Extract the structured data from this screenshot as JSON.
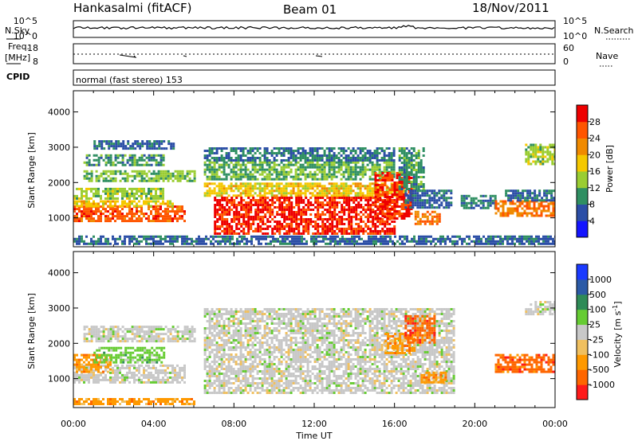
{
  "header": {
    "station": "Hankasalmi (fitACF)",
    "beam": "Beam 01",
    "date": "18/Nov/2011"
  },
  "noise_panel": {
    "left_label": "N.Sky",
    "right_label": "N.Search",
    "ticks": [
      {
        "base": "10",
        "exp": "^5"
      },
      {
        "base": "10",
        "exp": "^0"
      }
    ]
  },
  "freq_panel": {
    "left_label_1": "Freq.",
    "left_label_2": "[MHz]",
    "left_ticks": [
      "18",
      "8"
    ],
    "right_label": "Nave",
    "right_ticks": [
      "60",
      "0"
    ]
  },
  "cpid_panel": {
    "label": "CPID",
    "text": "normal (fast stereo) 153"
  },
  "chart_data": [
    {
      "type": "heatmap",
      "quantity": "Power",
      "colorbar_label": "Power [dB]",
      "colorbar_ticks": [
        "4",
        "8",
        "12",
        "16",
        "20",
        "24",
        "28"
      ],
      "colorbar_range": [
        0,
        32
      ],
      "colorbar_colors": [
        "#1414ff",
        "#2b4ea6",
        "#2f8f62",
        "#9acd32",
        "#f5c800",
        "#f08a00",
        "#ff5500",
        "#ee0000"
      ],
      "ylabel": "Slant Range [km]",
      "yticks": [
        "1000",
        "2000",
        "3000",
        "4000"
      ],
      "ylim": [
        180,
        4600
      ],
      "xlim": [
        0,
        24
      ],
      "regions": [
        {
          "t0": 0.0,
          "t1": 5.5,
          "r0": 900,
          "r1": 1350,
          "value": 26
        },
        {
          "t0": 0.0,
          "t1": 5.0,
          "r0": 1350,
          "r1": 1500,
          "value": 18
        },
        {
          "t0": 0.0,
          "t1": 4.5,
          "r0": 1550,
          "r1": 1850,
          "value": 14
        },
        {
          "t0": 0.5,
          "t1": 6.0,
          "r0": 2050,
          "r1": 2350,
          "value": 13
        },
        {
          "t0": 0.5,
          "t1": 4.5,
          "r0": 2500,
          "r1": 2800,
          "value": 10
        },
        {
          "t0": 1.0,
          "t1": 5.0,
          "r0": 2950,
          "r1": 3200,
          "value": 7
        },
        {
          "t0": 6.5,
          "t1": 16.5,
          "r0": 1600,
          "r1": 2000,
          "value": 18
        },
        {
          "t0": 6.5,
          "t1": 16.0,
          "r0": 2100,
          "r1": 2600,
          "value": 12
        },
        {
          "t0": 6.5,
          "t1": 16.0,
          "r0": 2650,
          "r1": 3000,
          "value": 8
        },
        {
          "t0": 7.0,
          "t1": 16.0,
          "r0": 550,
          "r1": 1600,
          "value": 29
        },
        {
          "t0": 15.0,
          "t1": 16.8,
          "r0": 1000,
          "r1": 2300,
          "value": 28
        },
        {
          "t0": 16.2,
          "t1": 17.5,
          "r0": 1800,
          "r1": 3000,
          "value": 10
        },
        {
          "t0": 17.0,
          "t1": 18.3,
          "r0": 850,
          "r1": 1200,
          "value": 24
        },
        {
          "t0": 16.5,
          "t1": 18.8,
          "r0": 1300,
          "r1": 1800,
          "value": 7
        },
        {
          "t0": 19.3,
          "t1": 21.0,
          "r0": 1300,
          "r1": 1650,
          "value": 9
        },
        {
          "t0": 21.0,
          "t1": 24.0,
          "r0": 1050,
          "r1": 1500,
          "value": 24
        },
        {
          "t0": 21.5,
          "t1": 24.0,
          "r0": 1500,
          "r1": 1800,
          "value": 8
        },
        {
          "t0": 22.5,
          "t1": 24.0,
          "r0": 2500,
          "r1": 3100,
          "value": 14
        },
        {
          "t0": 0.0,
          "t1": 24.0,
          "r0": 250,
          "r1": 500,
          "value": 7
        }
      ]
    },
    {
      "type": "heatmap",
      "quantity": "Velocity",
      "colorbar_label": "Velocity [m s^-1]",
      "colorbar_ticks": [
        "-1000",
        "-500",
        "-100",
        "-25",
        "25",
        "100",
        "500",
        "1000"
      ],
      "colorbar_colors": [
        "#ff1a1a",
        "#ff6600",
        "#ff9900",
        "#f0c060",
        "#c8c8c8",
        "#66cc33",
        "#2e8b57",
        "#2b5aa6",
        "#1a3aff"
      ],
      "ylabel": "Slant Range [km]",
      "yticks": [
        "1000",
        "2000",
        "3000",
        "4000"
      ],
      "ylim": [
        180,
        4600
      ],
      "xlim": [
        0,
        24
      ],
      "regions": [
        {
          "t0": 0.0,
          "t1": 5.5,
          "r0": 900,
          "r1": 1400,
          "value": "-25..25"
        },
        {
          "t0": 0.0,
          "t1": 1.8,
          "r0": 1200,
          "r1": 1700,
          "value": "-100"
        },
        {
          "t0": 1.0,
          "t1": 4.5,
          "r0": 1450,
          "r1": 1900,
          "value": "25..100"
        },
        {
          "t0": 0.5,
          "t1": 6.0,
          "r0": 2050,
          "r1": 2500,
          "value": "-25..25"
        },
        {
          "t0": 6.5,
          "t1": 19.0,
          "r0": 600,
          "r1": 3000,
          "value": "-25..25"
        },
        {
          "t0": 15.5,
          "t1": 17.0,
          "r0": 1700,
          "r1": 2300,
          "value": "-100"
        },
        {
          "t0": 16.5,
          "t1": 18.0,
          "r0": 2000,
          "r1": 2800,
          "value": "-500"
        },
        {
          "t0": 17.3,
          "t1": 18.5,
          "r0": 900,
          "r1": 1200,
          "value": "-100"
        },
        {
          "t0": 21.0,
          "t1": 24.0,
          "r0": 1200,
          "r1": 1700,
          "value": "-500"
        },
        {
          "t0": 22.5,
          "t1": 24.0,
          "r0": 2800,
          "r1": 3200,
          "value": "-25..25"
        },
        {
          "t0": 0.0,
          "t1": 6.0,
          "r0": 250,
          "r1": 450,
          "value": "-100"
        }
      ]
    }
  ],
  "x_axis": {
    "label": "Time UT",
    "ticks": [
      "00:00",
      "04:00",
      "08:00",
      "12:00",
      "16:00",
      "20:00",
      "00:00"
    ]
  },
  "colors": {
    "axes": "#000000",
    "background": "#ffffff"
  }
}
